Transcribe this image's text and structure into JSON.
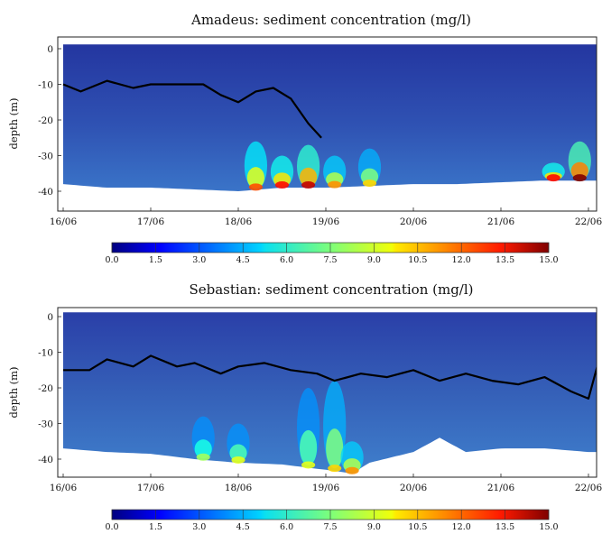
{
  "chart_data": [
    {
      "type": "heatmap",
      "title": "Amadeus: sediment concentration (mg/l)",
      "xlabel": "",
      "ylabel": "depth (m)",
      "x_ticks": [
        "16/06",
        "17/06",
        "18/06",
        "19/06",
        "20/06",
        "21/06",
        "22/06"
      ],
      "x_range_days": [
        16.0,
        22.1
      ],
      "y_ticks": [
        "0",
        "-10",
        "-20",
        "-30",
        "-40"
      ],
      "ylim": [
        -45,
        5
      ],
      "colorbar": {
        "range": [
          0.0,
          15.0
        ],
        "ticks": [
          "0.0",
          "1.5",
          "3.0",
          "4.5",
          "6.0",
          "7.5",
          "9.0",
          "10.5",
          "12.0",
          "13.5",
          "15.0"
        ],
        "colormap": "jet"
      },
      "line_series": {
        "color": "#000000",
        "x": [
          16.0,
          16.2,
          16.5,
          16.8,
          17.0,
          17.3,
          17.6,
          17.8,
          18.0,
          18.2,
          18.4,
          18.6,
          18.8,
          18.95
        ],
        "y": [
          -10,
          -12,
          -9,
          -11,
          -10,
          -10,
          -10,
          -13,
          -15,
          -12,
          -11,
          -14,
          -21,
          -25
        ]
      },
      "seafloor_depth": {
        "x": [
          16.0,
          16.5,
          17.0,
          17.5,
          18.0,
          18.5,
          19.0,
          19.5,
          20.0,
          20.5,
          21.0,
          21.5,
          22.0
        ],
        "y": [
          -38,
          -39,
          -39,
          -39.5,
          -40,
          -39,
          -39,
          -38.5,
          -38,
          -38,
          -37.5,
          -37,
          -37
        ]
      },
      "high_concentration_events": [
        {
          "x": 18.2,
          "top": -26,
          "peak": 12
        },
        {
          "x": 18.5,
          "top": -30,
          "peak": 13
        },
        {
          "x": 18.8,
          "top": -27,
          "peak": 14
        },
        {
          "x": 19.1,
          "top": -30,
          "peak": 11
        },
        {
          "x": 19.5,
          "top": -28,
          "peak": 10
        },
        {
          "x": 21.6,
          "top": -32,
          "peak": 13
        },
        {
          "x": 21.9,
          "top": -26,
          "peak": 15
        }
      ]
    },
    {
      "type": "heatmap",
      "title": "Sebastian: sediment concentration (mg/l)",
      "xlabel": "",
      "ylabel": "depth (m)",
      "x_ticks": [
        "16/06",
        "17/06",
        "18/06",
        "19/06",
        "20/06",
        "21/06",
        "22/06"
      ],
      "x_range_days": [
        16.0,
        22.1
      ],
      "y_ticks": [
        "0",
        "-10",
        "-20",
        "-30",
        "-40"
      ],
      "ylim": [
        -45,
        5
      ],
      "colorbar": {
        "range": [
          0.0,
          15.0
        ],
        "ticks": [
          "0.0",
          "1.5",
          "3.0",
          "4.5",
          "6.0",
          "7.5",
          "9.0",
          "10.5",
          "12.0",
          "13.5",
          "15.0"
        ],
        "colormap": "jet"
      },
      "line_series": {
        "color": "#000000",
        "x": [
          16.0,
          16.3,
          16.5,
          16.8,
          17.0,
          17.3,
          17.5,
          17.8,
          18.0,
          18.3,
          18.6,
          18.9,
          19.1,
          19.4,
          19.7,
          20.0,
          20.3,
          20.6,
          20.9,
          21.2,
          21.5,
          21.8,
          22.0,
          22.1
        ],
        "y": [
          -15,
          -15,
          -12,
          -14,
          -11,
          -14,
          -13,
          -16,
          -14,
          -13,
          -15,
          -16,
          -18,
          -16,
          -17,
          -15,
          -18,
          -16,
          -18,
          -19,
          -17,
          -21,
          -23,
          -14
        ]
      },
      "seafloor_depth": {
        "x": [
          16.0,
          16.5,
          17.0,
          17.5,
          18.0,
          18.5,
          19.0,
          19.3,
          19.5,
          20.0,
          20.3,
          20.6,
          21.0,
          21.5,
          22.0
        ],
        "y": [
          -37,
          -38,
          -38.5,
          -40,
          -41,
          -41.5,
          -43,
          -44,
          -41,
          -38,
          -34,
          -38,
          -37,
          -37,
          -38
        ]
      },
      "high_concentration_events": [
        {
          "x": 17.6,
          "top": -28,
          "peak": 8
        },
        {
          "x": 18.0,
          "top": -30,
          "peak": 9
        },
        {
          "x": 18.8,
          "top": -20,
          "peak": 9
        },
        {
          "x": 19.1,
          "top": -18,
          "peak": 10
        },
        {
          "x": 19.3,
          "top": -35,
          "peak": 11
        }
      ]
    }
  ]
}
